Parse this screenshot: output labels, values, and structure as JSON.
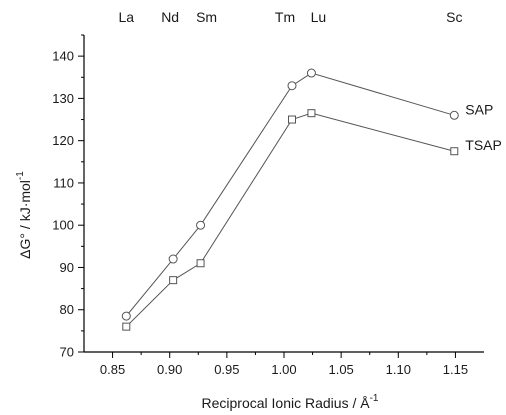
{
  "chart_data": {
    "type": "line",
    "xlabel": "Reciprocal Ionic Radius / Å",
    "xlabel_superscript": "-1",
    "ylabel": "ΔG° / kJ·mol",
    "ylabel_superscript": "-1",
    "xlim": [
      0.825,
      1.175
    ],
    "ylim": [
      70,
      145
    ],
    "x_ticks": [
      0.85,
      0.9,
      0.95,
      1.0,
      1.05,
      1.1,
      1.15
    ],
    "x_tick_labels": [
      "0.85",
      "0.90",
      "0.95",
      "1.00",
      "1.05",
      "1.10",
      "1.15"
    ],
    "y_ticks": [
      70,
      80,
      90,
      100,
      110,
      120,
      130,
      140
    ],
    "y_tick_labels": [
      "70",
      "80",
      "90",
      "100",
      "110",
      "120",
      "130",
      "140"
    ],
    "top_labels": [
      {
        "text": "La",
        "x": 0.862
      },
      {
        "text": "Nd",
        "x": 0.903
      },
      {
        "text": "Sm",
        "x": 0.927
      },
      {
        "text": "Tm",
        "x": 1.007
      },
      {
        "text": "Lu",
        "x": 1.024
      },
      {
        "text": "Sc",
        "x": 1.149
      }
    ],
    "series": [
      {
        "name": "SAP",
        "marker": "circle",
        "color": "#555555",
        "x": [
          0.862,
          0.903,
          0.927,
          1.007,
          1.024,
          1.149
        ],
        "y": [
          78.5,
          92,
          100,
          133,
          136,
          126
        ]
      },
      {
        "name": "TSAP",
        "marker": "square",
        "color": "#555555",
        "x": [
          0.862,
          0.903,
          0.927,
          1.007,
          1.024,
          1.149
        ],
        "y": [
          76,
          87,
          91,
          125,
          126.5,
          117.5
        ]
      }
    ],
    "grid": false
  }
}
